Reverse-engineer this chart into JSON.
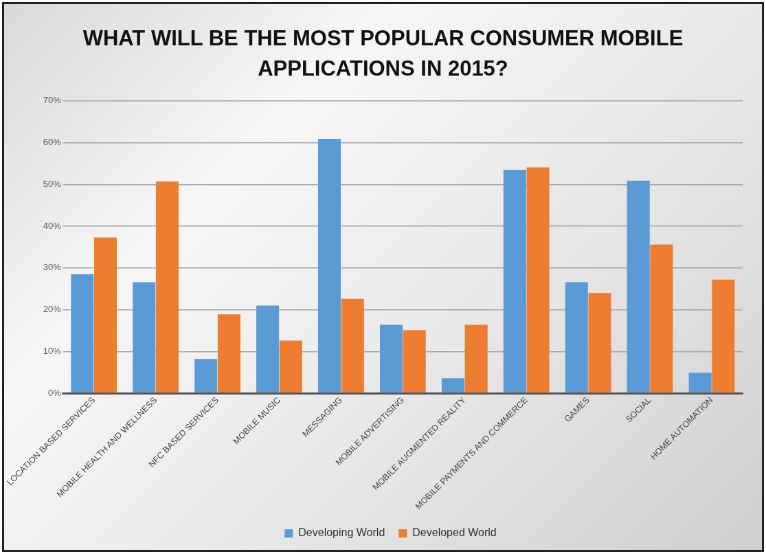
{
  "chart_data": {
    "type": "bar",
    "title": "WHAT WILL BE THE MOST POPULAR CONSUMER MOBILE APPLICATIONS IN 2015?",
    "categories": [
      "LOCATION BASED SERVICES",
      "MOBILE HEALTH AND WELLNESS",
      "NFC BASED SERVICES",
      "MOBILE MUSIC",
      "MESSAGING",
      "MOBILE ADVERTISING",
      "MOBILE AUGMENTED REALITY",
      "MOBILE PAYMENTS AND COMMERCE",
      "GAMES",
      "SOCIAL",
      "HOME AUTOMATION"
    ],
    "series": [
      {
        "name": "Developing World",
        "color": "#5b9bd5",
        "values": [
          28.5,
          26.6,
          8.2,
          21.0,
          60.9,
          16.4,
          3.6,
          53.5,
          26.6,
          50.9,
          4.9
        ]
      },
      {
        "name": "Developed World",
        "color": "#ed7d31",
        "values": [
          37.3,
          50.7,
          18.9,
          12.6,
          22.6,
          15.1,
          16.4,
          54.1,
          24.0,
          35.6,
          27.2
        ]
      }
    ],
    "ylim": [
      0,
      70
    ],
    "yticks": [
      {
        "value": 0,
        "label": "0%"
      },
      {
        "value": 10,
        "label": "10%"
      },
      {
        "value": 20,
        "label": "20%"
      },
      {
        "value": 30,
        "label": "30%"
      },
      {
        "value": 40,
        "label": "40%"
      },
      {
        "value": 50,
        "label": "50%"
      },
      {
        "value": 60,
        "label": "60%"
      },
      {
        "value": 70,
        "label": "70%"
      }
    ],
    "grid": "y",
    "legend": "bottom"
  }
}
